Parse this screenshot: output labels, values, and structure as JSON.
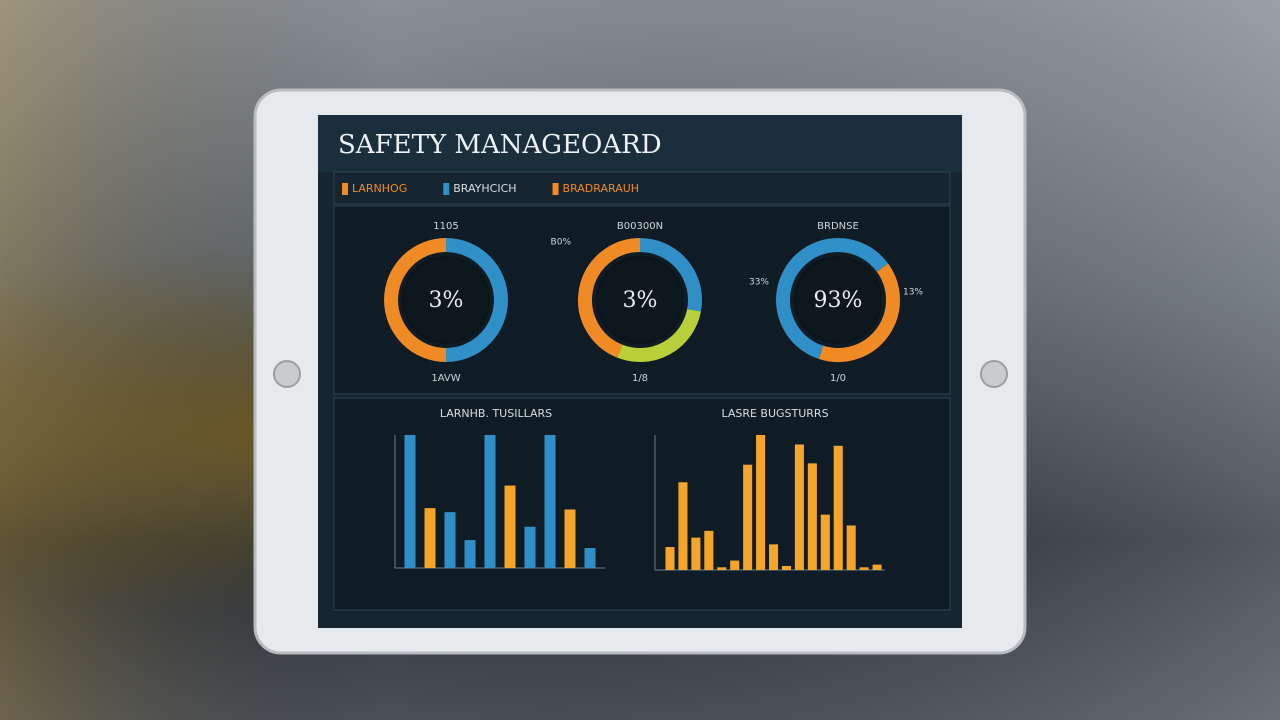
{
  "dashboard": {
    "title": "SAFETY MANAGEOARD",
    "legend": [
      {
        "label": "LARNHOG",
        "color": "#f08a24"
      },
      {
        "label": "BRAYHCICH",
        "color": "#2f8fc6"
      },
      {
        "label": "BRADRARAUH",
        "color": "#f08a24"
      }
    ],
    "donuts": [
      {
        "center": "3%",
        "top": "1105",
        "bottom": "1AVW",
        "segments": [
          {
            "value": 50,
            "color": "#2f8fc6"
          },
          {
            "value": 50,
            "color": "#f08a24"
          }
        ]
      },
      {
        "center": "3%",
        "top": "B00300N",
        "bottom": "1/8",
        "left": "B0%",
        "segments": [
          {
            "value": 28,
            "color": "#2f8fc6"
          },
          {
            "value": 28,
            "color": "#b8cf3a"
          },
          {
            "value": 44,
            "color": "#f08a24"
          }
        ]
      },
      {
        "center": "93%",
        "top": "BRDNSE",
        "bottom": "1/0",
        "left": "33%",
        "right": "13%",
        "segments": [
          {
            "value": 15,
            "color": "#2f8fc6"
          },
          {
            "value": 40,
            "color": "#f08a24"
          },
          {
            "value": 45,
            "color": "#2f8fc6"
          }
        ]
      }
    ],
    "bar_charts": [
      {
        "title": "LARNHB. TUSILLARS",
        "ylim": [
          0,
          100
        ],
        "bars": [
          {
            "value": 100,
            "color": "#2f8fc6"
          },
          {
            "value": 45,
            "color": "#f4a52a"
          },
          {
            "value": 42,
            "color": "#2f8fc6"
          },
          {
            "value": 21,
            "color": "#2f8fc6"
          },
          {
            "value": 100,
            "color": "#2f8fc6"
          },
          {
            "value": 62,
            "color": "#f4a52a"
          },
          {
            "value": 31,
            "color": "#2f8fc6"
          },
          {
            "value": 100,
            "color": "#2f8fc6"
          },
          {
            "value": 44,
            "color": "#f4a52a"
          },
          {
            "value": 15,
            "color": "#2f8fc6"
          }
        ]
      },
      {
        "title": "LASRE BUGSTURRS",
        "ylim": [
          0,
          100
        ],
        "bars": [
          {
            "value": 17,
            "color": "#f4a52a"
          },
          {
            "value": 65,
            "color": "#f4a52a"
          },
          {
            "value": 24,
            "color": "#f4a52a"
          },
          {
            "value": 29,
            "color": "#f4a52a"
          },
          {
            "value": 2,
            "color": "#f4a52a"
          },
          {
            "value": 7,
            "color": "#f4a52a"
          },
          {
            "value": 78,
            "color": "#f4a52a"
          },
          {
            "value": 100,
            "color": "#f4a52a"
          },
          {
            "value": 19,
            "color": "#f4a52a"
          },
          {
            "value": 3,
            "color": "#f4a52a"
          },
          {
            "value": 93,
            "color": "#f4a52a"
          },
          {
            "value": 79,
            "color": "#f4a52a"
          },
          {
            "value": 41,
            "color": "#f4a52a"
          },
          {
            "value": 92,
            "color": "#f4a52a"
          },
          {
            "value": 33,
            "color": "#f4a52a"
          },
          {
            "value": 2,
            "color": "#f4a52a"
          },
          {
            "value": 4,
            "color": "#f4a52a"
          }
        ]
      }
    ]
  }
}
